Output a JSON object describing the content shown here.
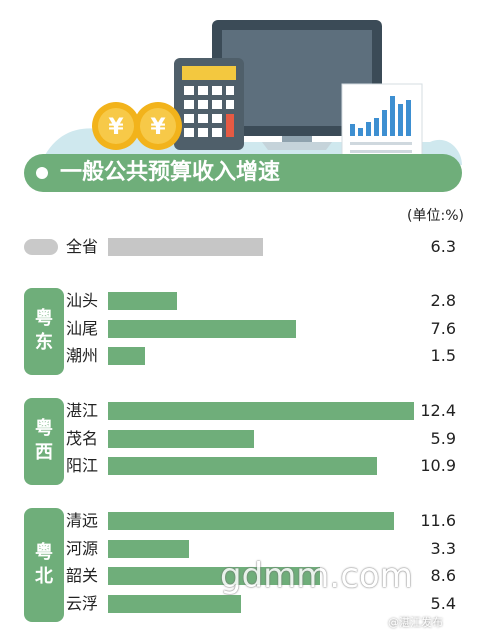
{
  "header": {
    "title": "一般公共预算收入增速",
    "unit": "(单位:%)"
  },
  "chart_data": {
    "type": "bar",
    "orientation": "horizontal",
    "unit": "%",
    "xlim": [
      0,
      12.4
    ],
    "groups": [
      {
        "region": "",
        "is_province": true,
        "items": [
          {
            "label": "全省",
            "value": 6.3,
            "value_text": "6.3"
          }
        ]
      },
      {
        "region": "粤东",
        "items": [
          {
            "label": "汕头",
            "value": 2.8,
            "value_text": "2.8"
          },
          {
            "label": "汕尾",
            "value": 7.6,
            "value_text": "7.6"
          },
          {
            "label": "潮州",
            "value": 1.5,
            "value_text": "1.5"
          }
        ]
      },
      {
        "region": "粤西",
        "items": [
          {
            "label": "湛江",
            "value": 12.4,
            "value_text": "12.4"
          },
          {
            "label": "茂名",
            "value": 5.9,
            "value_text": "5.9"
          },
          {
            "label": "阳江",
            "value": 10.9,
            "value_text": "10.9"
          }
        ]
      },
      {
        "region": "粤北",
        "items": [
          {
            "label": "清远",
            "value": 11.6,
            "value_text": "11.6"
          },
          {
            "label": "河源",
            "value": 3.3,
            "value_text": "3.3"
          },
          {
            "label": "韶关",
            "value": 8.6,
            "value_text": "8.6"
          },
          {
            "label": "云浮",
            "value": 5.4,
            "value_text": "5.4"
          }
        ]
      }
    ],
    "colors": {
      "province_bar": "#c6c6c6",
      "city_bar": "#6fae7a",
      "region_tag": "#6fae7a"
    }
  },
  "watermarks": {
    "site": "gdmm.com",
    "account": "@湛江发布"
  }
}
